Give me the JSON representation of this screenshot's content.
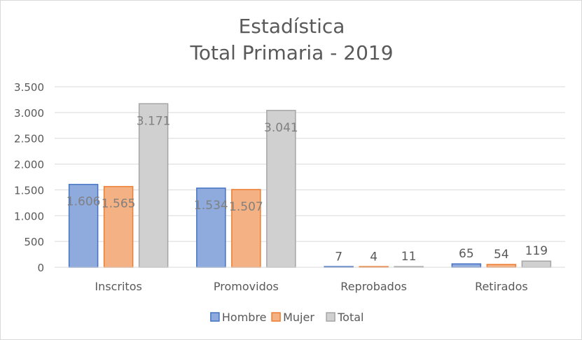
{
  "chart_data": {
    "type": "bar",
    "title": "Estadística",
    "subtitle": "Total Primaria - 2019",
    "categories": [
      "Inscritos",
      "Promovidos",
      "Reprobados",
      "Retirados"
    ],
    "series": [
      {
        "name": "Hombre",
        "values": [
          1606,
          1534,
          7,
          65
        ],
        "labels": [
          "1.606",
          "1.534",
          "7",
          "65"
        ],
        "fill": "#8faadc",
        "stroke": "#4472c4"
      },
      {
        "name": "Mujer",
        "values": [
          1565,
          1507,
          4,
          54
        ],
        "labels": [
          "1.565",
          "1.507",
          "4",
          "54"
        ],
        "fill": "#f4b183",
        "stroke": "#ed7d31"
      },
      {
        "name": "Total",
        "values": [
          3171,
          3041,
          11,
          119
        ],
        "labels": [
          "3.171",
          "3.041",
          "11",
          "119"
        ],
        "fill": "#d0d0d0",
        "stroke": "#a5a5a5"
      }
    ],
    "yticks": [
      {
        "value": 0,
        "label": "0"
      },
      {
        "value": 500,
        "label": "500"
      },
      {
        "value": 1000,
        "label": "1.000"
      },
      {
        "value": 1500,
        "label": "1.500"
      },
      {
        "value": 2000,
        "label": "2.000"
      },
      {
        "value": 2500,
        "label": "2.500"
      },
      {
        "value": 3000,
        "label": "3.000"
      },
      {
        "value": 3500,
        "label": "3.500"
      }
    ],
    "ylim": [
      0,
      3500
    ],
    "grid": true,
    "legend": "bottom",
    "label_color": "#808080",
    "axis_label_color": "#595959",
    "grid_color": "#d9d9d9"
  }
}
